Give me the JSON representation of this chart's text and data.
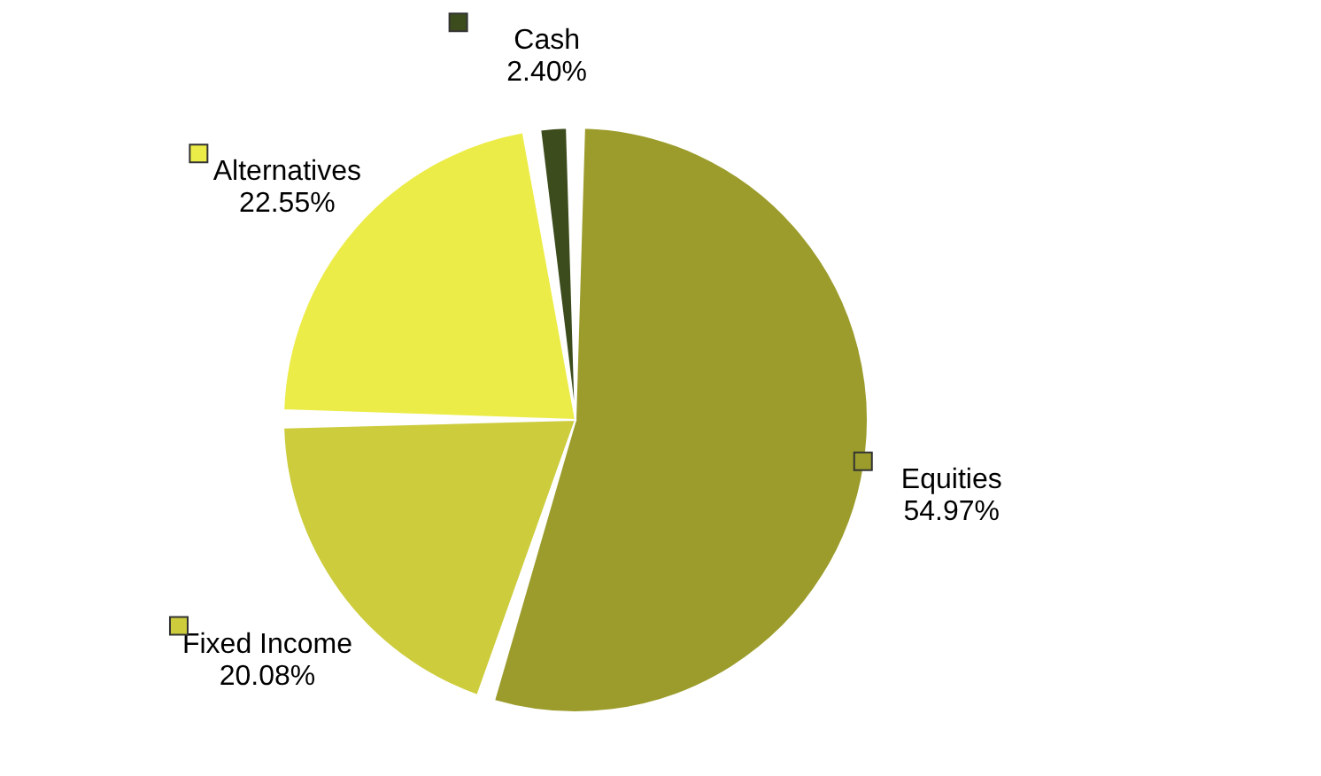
{
  "chart_data": {
    "type": "pie",
    "categories": [
      "Equities",
      "Fixed Income",
      "Alternatives",
      "Cash"
    ],
    "values": [
      54.97,
      20.08,
      22.55,
      2.4
    ],
    "value_labels": [
      "54.97%",
      "20.08%",
      "22.55%",
      "2.40%"
    ],
    "colors": [
      "#9c9c2c",
      "#cccc3c",
      "#ecec48",
      "#3c4c1c"
    ],
    "legend": true
  }
}
